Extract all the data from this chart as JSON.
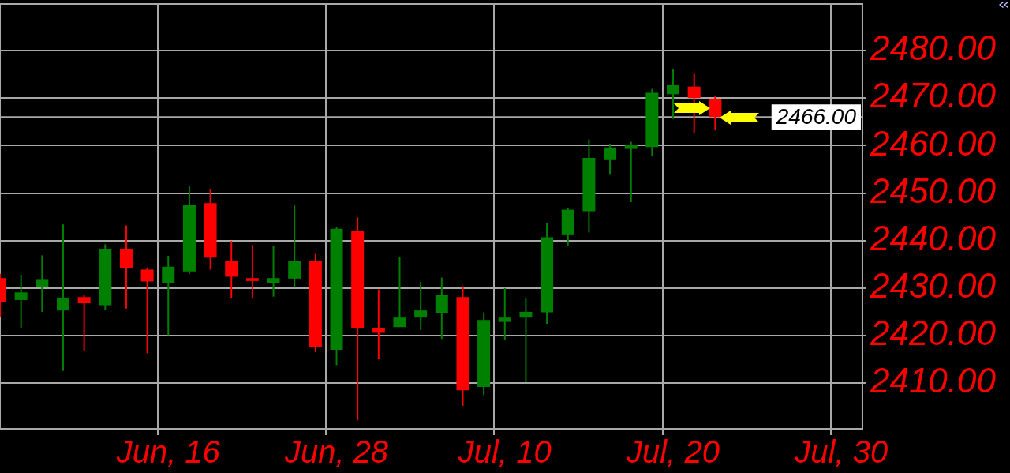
{
  "chart_data": {
    "type": "candlestick",
    "categories": [
      null,
      null,
      null,
      null,
      null,
      null,
      null,
      null,
      "Jun, 16",
      null,
      null,
      null,
      null,
      null,
      null,
      null,
      "Jun, 28",
      null,
      null,
      null,
      null,
      null,
      null,
      null,
      "Jul, 10",
      null,
      null,
      null,
      null,
      null,
      null,
      null,
      "Jul, 20",
      null,
      null,
      null,
      null,
      null,
      null,
      null,
      "Jul, 30",
      null
    ],
    "ohlc": [
      [
        2432.1,
        2433.0,
        2423.9,
        2427.1
      ],
      [
        2427.5,
        2432.8,
        2421.6,
        2429.1
      ],
      [
        2430.3,
        2436.9,
        2425.0,
        2431.9
      ],
      [
        2425.3,
        2443.4,
        2412.6,
        2428.0
      ],
      [
        2428.1,
        2428.6,
        2416.7,
        2426.8
      ],
      [
        2426.4,
        2439.2,
        2425.4,
        2438.3
      ],
      [
        2438.3,
        2443.2,
        2425.7,
        2434.3
      ],
      [
        2433.9,
        2434.3,
        2416.3,
        2431.4
      ],
      [
        2431.1,
        2436.8,
        2420.1,
        2434.5
      ],
      [
        2433.5,
        2451.5,
        2433.0,
        2447.5
      ],
      [
        2447.9,
        2450.9,
        2433.9,
        2436.4
      ],
      [
        2435.7,
        2439.9,
        2427.9,
        2432.4
      ],
      [
        2432.1,
        2439.1,
        2427.9,
        2431.5
      ],
      [
        2431.1,
        2438.8,
        2428.2,
        2432.1
      ],
      [
        2432.0,
        2447.4,
        2430.1,
        2435.7
      ],
      [
        2435.7,
        2437.2,
        2416.5,
        2417.5
      ],
      [
        2417.0,
        2442.8,
        2413.8,
        2442.5
      ],
      [
        2442.0,
        2444.9,
        2402.2,
        2421.5
      ],
      [
        2421.6,
        2429.7,
        2415.1,
        2420.6
      ],
      [
        2421.8,
        2436.5,
        2421.8,
        2423.8
      ],
      [
        2423.8,
        2431.3,
        2421.2,
        2425.3
      ],
      [
        2424.7,
        2432.2,
        2419.3,
        2428.5
      ],
      [
        2428.1,
        2430.4,
        2405.2,
        2408.5
      ],
      [
        2409.2,
        2424.9,
        2407.5,
        2423.3
      ],
      [
        2422.9,
        2430.0,
        2419.1,
        2423.8
      ],
      [
        2423.8,
        2427.8,
        2410.2,
        2425.0
      ],
      [
        2424.9,
        2443.7,
        2422.5,
        2440.7
      ],
      [
        2441.3,
        2446.9,
        2439.0,
        2446.5
      ],
      [
        2446.2,
        2461.3,
        2441.7,
        2457.4
      ],
      [
        2457.1,
        2460.4,
        2454.0,
        2459.6
      ],
      [
        2459.3,
        2460.8,
        2448.1,
        2460.2
      ],
      [
        2459.7,
        2471.9,
        2457.7,
        2471.1
      ],
      [
        2470.8,
        2476.0,
        2465.6,
        2472.7
      ],
      [
        2472.4,
        2475.1,
        2462.7,
        2470.0
      ],
      [
        2469.8,
        2470.4,
        2463.3,
        2466.0
      ],
      null,
      null,
      null,
      null,
      null,
      null,
      null
    ],
    "colors": [
      "#ff0000",
      "#008000",
      "#008000",
      "#008000",
      "#ff0000",
      "#008000",
      "#ff0000",
      "#ff0000",
      "#008000",
      "#008000",
      "#ff0000",
      "#ff0000",
      "#ff0000",
      "#008000",
      "#008000",
      "#ff0000",
      "#008000",
      "#ff0000",
      "#ff0000",
      "#008000",
      "#008000",
      "#008000",
      "#ff0000",
      "#008000",
      "#008000",
      "#008000",
      "#008000",
      "#008000",
      "#008000",
      "#008000",
      "#008000",
      "#008000",
      "#008000",
      "#ff0000",
      "#ff0000",
      null,
      null,
      null,
      null,
      null,
      null,
      null
    ],
    "ylim": [
      2400.4,
      2489.8
    ],
    "yticks": [
      {
        "value": 2410,
        "label": "2410.00"
      },
      {
        "value": 2420,
        "label": "2420.00"
      },
      {
        "value": 2430,
        "label": "2430.00"
      },
      {
        "value": 2440,
        "label": "2440.00"
      },
      {
        "value": 2450,
        "label": "2450.00"
      },
      {
        "value": 2460,
        "label": "2460.00"
      },
      {
        "value": 2470,
        "label": "2470.00"
      },
      {
        "value": 2480,
        "label": "2480.00"
      }
    ],
    "ref_lines": [
      {
        "axis": "y",
        "value": 2466,
        "label": "2466.00"
      }
    ],
    "grid": true
  }
}
